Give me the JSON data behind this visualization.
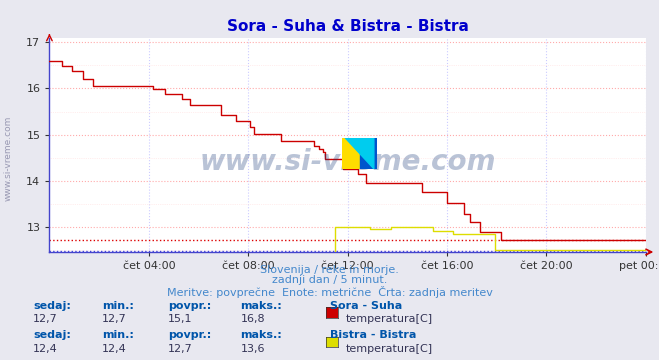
{
  "title": "Sora - Suha & Bistra - Bistra",
  "title_color": "#0000cc",
  "bg_color": "#e8e8f0",
  "plot_bg_color": "#ffffff",
  "grid_color_major": "#ffaaaa",
  "grid_color_minor": "#ddddff",
  "xlabel": "",
  "ylabel": "",
  "xlim": [
    0,
    288
  ],
  "ylim": [
    12.45,
    17.1
  ],
  "yticks": [
    13,
    14,
    15,
    16,
    17
  ],
  "xtick_labels": [
    "čet 04:00",
    "čet 08:00",
    "čet 12:00",
    "čet 16:00",
    "čet 20:00",
    "pet 00:00"
  ],
  "xtick_positions": [
    48,
    96,
    144,
    192,
    240,
    288
  ],
  "watermark_text": "www.si-vreme.com",
  "watermark_color": "#1a3a7a",
  "watermark_alpha": 0.3,
  "subtitle_lines": [
    "Slovenija / reke in morje.",
    "zadnji dan / 5 minut.",
    "Meritve: povprečne  Enote: metrične  Črta: zadnja meritev"
  ],
  "subtitle_color": "#4488cc",
  "legend_entries": [
    {
      "label": "Sora - Suha",
      "sublabel": "temperatura[C]",
      "color": "#cc0000"
    },
    {
      "label": "Bistra - Bistra",
      "sublabel": "temperatura[C]",
      "color": "#dddd00"
    }
  ],
  "stats_sora": {
    "sedaj": "12,7",
    "min": "12,7",
    "povpr": "15,1",
    "maks": "16,8"
  },
  "stats_bistra": {
    "sedaj": "12,4",
    "min": "12,4",
    "povpr": "12,7",
    "maks": "13,6"
  },
  "line_sora_color": "#cc0000",
  "line_bistra_color": "#dddd00",
  "line_width": 1.0,
  "hline_red_y": 12.72,
  "hline_blue_y": 12.48,
  "hline_red_color": "#dd0000",
  "hline_blue_color": "#4444dd",
  "hline_style_red": ":",
  "hline_style_blue": ":"
}
